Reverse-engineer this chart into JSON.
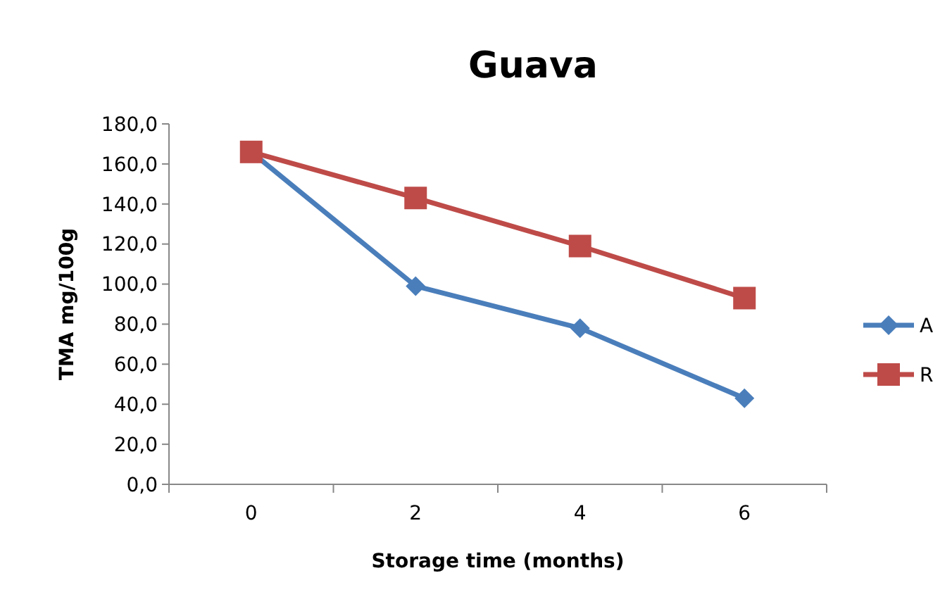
{
  "chart_data": {
    "type": "line",
    "title": "Guava",
    "xlabel": "Storage time (months)",
    "ylabel": "TMA mg/100g",
    "categories": [
      "0",
      "2",
      "4",
      "6"
    ],
    "series": [
      {
        "name": "A",
        "color": "#4a7ebb",
        "marker": "diamond",
        "values": [
          166,
          99,
          78,
          43
        ]
      },
      {
        "name": "R",
        "color": "#be4b48",
        "marker": "square",
        "values": [
          166,
          143,
          119,
          93
        ]
      }
    ],
    "ylim": [
      0,
      180
    ],
    "yticks": [
      {
        "value": 0,
        "label": "0,0"
      },
      {
        "value": 20,
        "label": "20,0"
      },
      {
        "value": 40,
        "label": "40,0"
      },
      {
        "value": 60,
        "label": "60,0"
      },
      {
        "value": 80,
        "label": "80,0"
      },
      {
        "value": 100,
        "label": "100,0"
      },
      {
        "value": 120,
        "label": "120,0"
      },
      {
        "value": 140,
        "label": "140,0"
      },
      {
        "value": 160,
        "label": "160,0"
      },
      {
        "value": 180,
        "label": "180,0"
      }
    ],
    "grid": false,
    "legend": "right",
    "line_style": "solid"
  }
}
